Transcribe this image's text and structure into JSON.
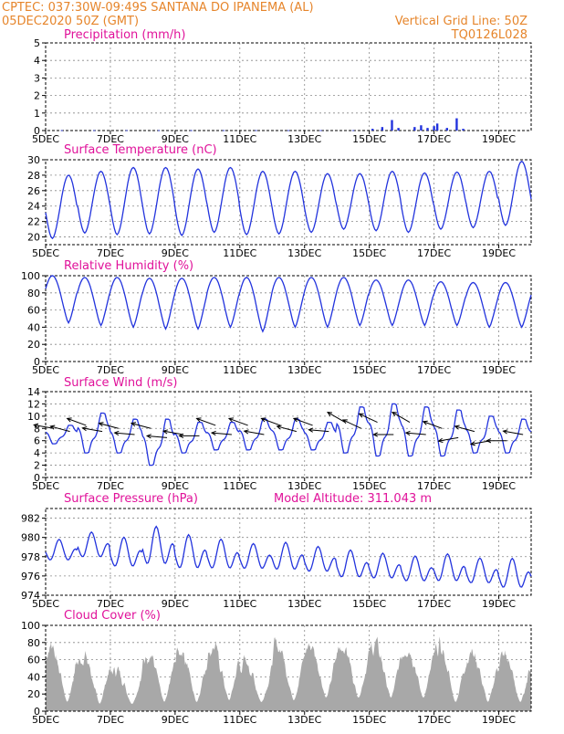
{
  "header": {
    "line1_left": "CPTEC:   037:30W-09:49S   SANTANA DO IPANEMA (AL)",
    "line2_left": "05DEC2020 50Z (GMT)",
    "line2_right": "Vertical Grid Line: 50Z",
    "line3_right": "TQ0126L028"
  },
  "colors": {
    "header": "#e6852b",
    "title": "#e0129a",
    "series": "#2233dd",
    "cloud_fill": "#a8a8a8",
    "grid": "#888888"
  },
  "x_axis": {
    "start": "05DEC2020 00Z",
    "end": "20DEC2020 00Z",
    "ticks": [
      {
        "label": "5DEC",
        "day": 0
      },
      {
        "label": "7DEC",
        "day": 2
      },
      {
        "label": "9DEC",
        "day": 4
      },
      {
        "label": "11DEC",
        "day": 6
      },
      {
        "label": "13DEC",
        "day": 8
      },
      {
        "label": "15DEC",
        "day": 10
      },
      {
        "label": "17DEC",
        "day": 12
      },
      {
        "label": "19DEC",
        "day": 14
      }
    ]
  },
  "chart_data": [
    {
      "id": "precip",
      "type": "bar",
      "title": "Precipitation (mm/h)",
      "ylim": [
        0,
        5
      ],
      "yticks": [
        0,
        1,
        2,
        3,
        4,
        5
      ],
      "grid": true,
      "x_unit": "days since 05DEC2020 00Z",
      "x": [
        0.5,
        1.5,
        2.5,
        3.5,
        4.5,
        5.5,
        6.5,
        7.5,
        8.5,
        9.5,
        10.1,
        10.4,
        10.7,
        10.9,
        11.4,
        11.6,
        11.8,
        12.0,
        12.1,
        12.4,
        12.7,
        12.9
      ],
      "values": [
        0.02,
        0.02,
        0.02,
        0.02,
        0.02,
        0.02,
        0.02,
        0.02,
        0.02,
        0.02,
        0.1,
        0.2,
        0.6,
        0.15,
        0.2,
        0.3,
        0.15,
        0.25,
        0.4,
        0.15,
        0.7,
        0.1
      ]
    },
    {
      "id": "temp",
      "type": "line",
      "title": "Surface Temperature (nC)",
      "ylim": [
        19,
        30
      ],
      "yticks": [
        20,
        22,
        24,
        26,
        28,
        30
      ],
      "grid": true,
      "daily_max": [
        28.0,
        28.5,
        29.0,
        29.0,
        28.8,
        29.0,
        28.5,
        28.5,
        28.2,
        28.2,
        28.5,
        28.3,
        28.4,
        28.5,
        29.8,
        29.6
      ],
      "daily_min": [
        19.8,
        20.5,
        20.3,
        20.4,
        20.2,
        20.6,
        20.3,
        20.4,
        20.6,
        21.0,
        20.8,
        20.6,
        21.0,
        21.2,
        21.5,
        24.5
      ]
    },
    {
      "id": "rh",
      "type": "line",
      "title": "Relative Humidity (%)",
      "ylim": [
        0,
        100
      ],
      "yticks": [
        0,
        20,
        40,
        60,
        80,
        100
      ],
      "grid": true,
      "daily_max": [
        100,
        98,
        98,
        97,
        97,
        98,
        98,
        98,
        98,
        98,
        95,
        95,
        93,
        92,
        92,
        92
      ],
      "daily_min": [
        45,
        42,
        40,
        38,
        38,
        40,
        35,
        40,
        40,
        42,
        42,
        42,
        42,
        40,
        40,
        45
      ]
    },
    {
      "id": "wind",
      "type": "line",
      "title": "Surface Wind (m/s)",
      "ylim": [
        0,
        14
      ],
      "yticks": [
        0,
        2,
        4,
        6,
        8,
        10,
        12,
        14
      ],
      "grid": true,
      "daily_max": [
        8.5,
        10.5,
        9.5,
        9.5,
        9.0,
        9.0,
        9.5,
        9.5,
        9.0,
        11.5,
        12.0,
        11.5,
        11.0,
        10.0,
        9.5,
        9.0
      ],
      "daily_min": [
        5.5,
        4.0,
        4.0,
        2.0,
        4.0,
        4.5,
        4.5,
        4.5,
        4.5,
        4.0,
        3.5,
        3.5,
        3.5,
        4.0,
        4.0,
        4.5
      ],
      "arrows": [
        {
          "day": 0.25,
          "speed": 8.0,
          "dir": 170
        },
        {
          "day": 0.75,
          "speed": 7.5,
          "dir": 165
        },
        {
          "day": 1.25,
          "speed": 8.5,
          "dir": 160
        },
        {
          "day": 1.75,
          "speed": 7.5,
          "dir": 170
        },
        {
          "day": 2.25,
          "speed": 8.0,
          "dir": 165
        },
        {
          "day": 2.75,
          "speed": 7.0,
          "dir": 175
        },
        {
          "day": 3.25,
          "speed": 8.0,
          "dir": 165
        },
        {
          "day": 3.75,
          "speed": 6.5,
          "dir": 175
        },
        {
          "day": 4.25,
          "speed": 7.0,
          "dir": 170
        },
        {
          "day": 4.75,
          "speed": 6.8,
          "dir": 180
        },
        {
          "day": 5.25,
          "speed": 8.5,
          "dir": 160
        },
        {
          "day": 5.75,
          "speed": 7.0,
          "dir": 175
        },
        {
          "day": 6.25,
          "speed": 8.5,
          "dir": 160
        },
        {
          "day": 6.75,
          "speed": 7.0,
          "dir": 170
        },
        {
          "day": 7.25,
          "speed": 8.5,
          "dir": 160
        },
        {
          "day": 7.75,
          "speed": 7.5,
          "dir": 165
        },
        {
          "day": 8.25,
          "speed": 8.5,
          "dir": 160
        },
        {
          "day": 8.75,
          "speed": 7.5,
          "dir": 175
        },
        {
          "day": 9.25,
          "speed": 9.0,
          "dir": 150
        },
        {
          "day": 9.75,
          "speed": 8.0,
          "dir": 155
        },
        {
          "day": 10.25,
          "speed": 9.0,
          "dir": 155
        },
        {
          "day": 10.75,
          "speed": 7.0,
          "dir": 180
        },
        {
          "day": 11.25,
          "speed": 9.0,
          "dir": 150
        },
        {
          "day": 11.75,
          "speed": 7.0,
          "dir": 175
        },
        {
          "day": 12.25,
          "speed": 8.0,
          "dir": 160
        },
        {
          "day": 12.75,
          "speed": 6.5,
          "dir": 190
        },
        {
          "day": 13.25,
          "speed": 7.5,
          "dir": 165
        },
        {
          "day": 13.75,
          "speed": 6.0,
          "dir": 190
        },
        {
          "day": 14.25,
          "speed": 6.0,
          "dir": 180
        },
        {
          "day": 14.75,
          "speed": 7.0,
          "dir": 170
        }
      ]
    },
    {
      "id": "pres",
      "type": "line",
      "title": "Surface Pressure (hPa)",
      "annotation": "Model Altitude: 311.043 m",
      "ylim": [
        974,
        983
      ],
      "yticks": [
        974,
        976,
        978,
        980,
        982
      ],
      "grid": true,
      "mean": [
        978.5,
        979.0,
        978.2,
        978.8,
        978.2,
        978.0,
        977.8,
        977.8,
        977.5,
        977.0,
        976.8,
        976.5,
        976.6,
        976.3,
        976.0,
        975.8
      ],
      "amplitude": [
        1.0,
        1.2,
        1.4,
        1.8,
        1.6,
        1.4,
        1.2,
        1.3,
        1.2,
        1.3,
        1.2,
        1.2,
        1.3,
        1.2,
        1.4,
        1.4
      ]
    },
    {
      "id": "cloud",
      "type": "area",
      "title": "Cloud Cover (%)",
      "ylim": [
        0,
        100
      ],
      "yticks": [
        0,
        20,
        40,
        60,
        80,
        100
      ],
      "grid": true,
      "daily_peak": [
        95,
        80,
        60,
        85,
        90,
        92,
        70,
        95,
        95,
        95,
        95,
        92,
        92,
        85,
        80,
        85
      ],
      "daily_base": [
        10,
        8,
        8,
        10,
        10,
        12,
        10,
        12,
        15,
        15,
        15,
        15,
        10,
        10,
        10,
        15
      ]
    }
  ]
}
